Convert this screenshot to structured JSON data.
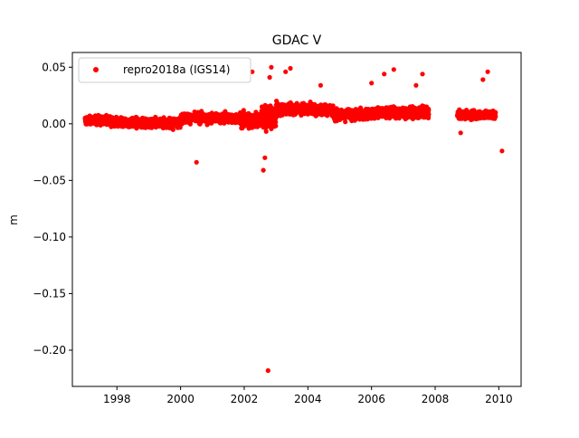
{
  "chart_data": {
    "type": "scatter",
    "title": "GDAC V",
    "xlabel": "",
    "ylabel": "m",
    "xlim": [
      1996.6,
      2010.7
    ],
    "ylim": [
      -0.232,
      0.063
    ],
    "xticks": [
      1998,
      2000,
      2002,
      2004,
      2006,
      2008,
      2010
    ],
    "xtick_labels": [
      "1998",
      "2000",
      "2002",
      "2004",
      "2006",
      "2008",
      "2010"
    ],
    "yticks": [
      0.05,
      0.0,
      -0.05,
      -0.1,
      -0.15,
      -0.2
    ],
    "ytick_labels": [
      "0.05",
      "0.00",
      "−0.05",
      "−0.10",
      "−0.15",
      "−0.20"
    ],
    "grid": false,
    "legend_position": "top-left",
    "series": [
      {
        "name": "repro2018a (IGS14)",
        "color": "#ff0000",
        "marker": "circle",
        "segments": [
          {
            "x_start": 1997.0,
            "x_end": 1997.8,
            "center": 0.003,
            "spread": 0.006
          },
          {
            "x_start": 1997.8,
            "x_end": 2000.0,
            "center": 0.001,
            "spread": 0.007
          },
          {
            "x_start": 2000.0,
            "x_end": 2001.9,
            "center": 0.005,
            "spread": 0.007
          },
          {
            "x_start": 2001.9,
            "x_end": 2002.5,
            "center": 0.003,
            "spread": 0.012
          },
          {
            "x_start": 2002.5,
            "x_end": 2003.0,
            "center": 0.005,
            "spread": 0.016
          },
          {
            "x_start": 2003.0,
            "x_end": 2004.8,
            "center": 0.013,
            "spread": 0.008
          },
          {
            "x_start": 2004.8,
            "x_end": 2006.0,
            "center": 0.008,
            "spread": 0.008
          },
          {
            "x_start": 2006.0,
            "x_end": 2007.8,
            "center": 0.01,
            "spread": 0.008
          },
          {
            "x_start": 2008.7,
            "x_end": 2009.9,
            "center": 0.008,
            "spread": 0.006
          }
        ],
        "outliers": [
          {
            "x": 2000.5,
            "y": -0.034
          },
          {
            "x": 2002.25,
            "y": 0.046
          },
          {
            "x": 2002.6,
            "y": -0.041
          },
          {
            "x": 2002.65,
            "y": -0.03
          },
          {
            "x": 2002.75,
            "y": -0.218
          },
          {
            "x": 2002.8,
            "y": 0.041
          },
          {
            "x": 2002.85,
            "y": 0.05
          },
          {
            "x": 2003.3,
            "y": 0.046
          },
          {
            "x": 2003.45,
            "y": 0.049
          },
          {
            "x": 2004.4,
            "y": 0.034
          },
          {
            "x": 2006.0,
            "y": 0.036
          },
          {
            "x": 2006.4,
            "y": 0.044
          },
          {
            "x": 2006.7,
            "y": 0.048
          },
          {
            "x": 2007.4,
            "y": 0.034
          },
          {
            "x": 2007.6,
            "y": 0.044
          },
          {
            "x": 2008.8,
            "y": -0.008
          },
          {
            "x": 2009.5,
            "y": 0.039
          },
          {
            "x": 2009.65,
            "y": 0.046
          },
          {
            "x": 2010.1,
            "y": -0.024
          }
        ]
      }
    ]
  }
}
